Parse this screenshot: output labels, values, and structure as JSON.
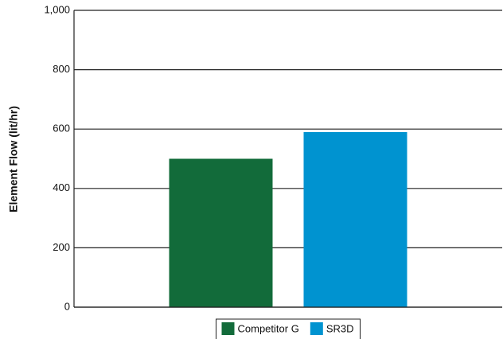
{
  "chart_data": {
    "type": "bar",
    "y_label": "Element Flow (lit/hr)",
    "categories": [
      null
    ],
    "series": [
      {
        "name": "Competitor G",
        "color": "#126b3a",
        "values": [
          500
        ]
      },
      {
        "name": "SR3D",
        "color": "#0093d0",
        "values": [
          590
        ]
      }
    ],
    "ylim": [
      0,
      1000
    ],
    "yticks": [
      0,
      200,
      400,
      600,
      800,
      {
        "value": 1000,
        "label": "1,000"
      }
    ],
    "grid": true,
    "legend": "bottom"
  }
}
